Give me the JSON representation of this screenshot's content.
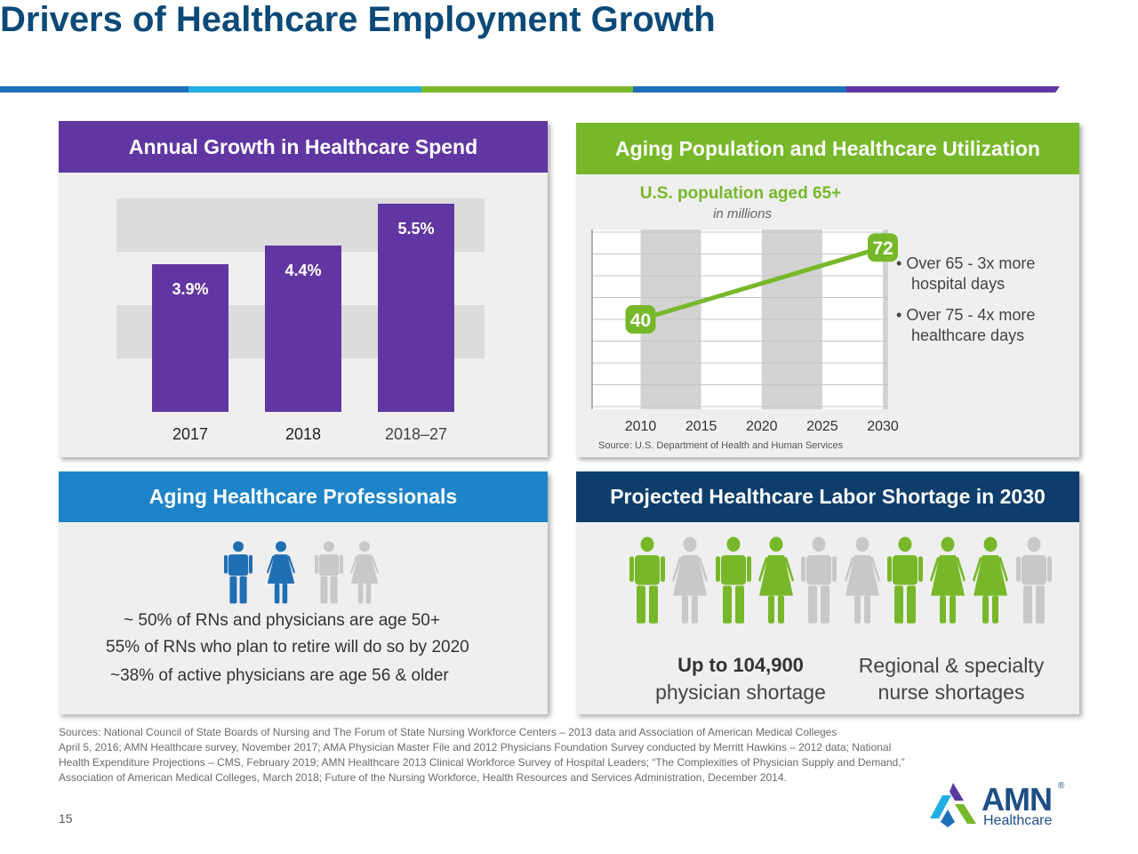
{
  "title": "Drivers of Healthcare Employment Growth",
  "colors": {
    "title": "#0b4a78",
    "purple": "#6236a2",
    "green": "#77b82a",
    "light_blue": "#1d84c9",
    "navy": "#0d3d6b",
    "gray_figure": "#c8c8c8",
    "icon_blue": "#1f6fb5"
  },
  "spend": {
    "header": "Annual Growth in Healthcare Spend"
  },
  "aging_pop": {
    "header": "Aging Population and Healthcare Utilization",
    "chart_title": "U.S. population aged 65+",
    "chart_subtitle": "in millions",
    "source": "Source: U.S. Department of Health and Human Services",
    "bullets": [
      {
        "line1": "Over 65 - 3x more",
        "line2": "hospital days"
      },
      {
        "line1": "Over 75 - 4x more",
        "line2": "healthcare days"
      }
    ]
  },
  "chart_data": [
    {
      "type": "bar",
      "title": "Annual Growth in Healthcare Spend",
      "categories": [
        "2017",
        "2018",
        "2018–27"
      ],
      "values": [
        3.9,
        4.4,
        5.5
      ],
      "value_labels": [
        "3.9%",
        "4.4%",
        "5.5%"
      ],
      "ylim": [
        0,
        6.5
      ],
      "ylabel": "",
      "xlabel": ""
    },
    {
      "type": "line",
      "title": "U.S. population aged 65+",
      "subtitle": "in millions",
      "x": [
        "2010",
        "2015",
        "2020",
        "2025",
        "2030"
      ],
      "xlim": [
        2006,
        2030
      ],
      "ylim": [
        0,
        80
      ],
      "series": [
        {
          "name": "U.S. population aged 65+",
          "x": [
            2010,
            2030
          ],
          "values": [
            40,
            72
          ],
          "value_labels": [
            "40",
            "72"
          ]
        }
      ]
    }
  ],
  "professionals": {
    "header": "Aging Healthcare Professionals",
    "stats": [
      "~ 50% of RNs and physicians are age 50+",
      "55% of RNs who plan to retire will do so by 2020",
      "~38% of active physicians are age 56 & older"
    ],
    "figures": [
      {
        "icon": "man-icon",
        "highlighted": true
      },
      {
        "icon": "woman-icon",
        "highlighted": true
      },
      {
        "icon": "man-icon",
        "highlighted": false
      },
      {
        "icon": "woman-icon",
        "highlighted": false
      }
    ]
  },
  "shortage": {
    "header": "Projected Healthcare Labor Shortage in 2030",
    "physician_line1": "Up to 104,900",
    "physician_line2": "physician shortage",
    "nurse_line1": "Regional & specialty",
    "nurse_line2": "nurse shortages",
    "figures": [
      {
        "icon": "man-icon",
        "highlighted": true
      },
      {
        "icon": "woman-icon",
        "highlighted": false
      },
      {
        "icon": "man-icon",
        "highlighted": true
      },
      {
        "icon": "woman-icon",
        "highlighted": true
      },
      {
        "icon": "man-icon",
        "highlighted": false
      },
      {
        "icon": "woman-icon",
        "highlighted": false
      },
      {
        "icon": "man-icon",
        "highlighted": true
      },
      {
        "icon": "woman-icon",
        "highlighted": true
      },
      {
        "icon": "woman-icon",
        "highlighted": true
      },
      {
        "icon": "man-icon",
        "highlighted": false
      }
    ]
  },
  "sources": {
    "lines": [
      "Sources: National Council of State Boards of Nursing and The Forum of State Nursing Workforce Centers – 2013 data and Association of American Medical Colleges",
      "April 5, 2016; AMN Healthcare survey, November 2017; AMA Physician Master File and 2012 Physicians Foundation Survey conducted by Merritt Hawkins – 2012 data; National",
      "Health Expenditure Projections – CMS, February 2019; AMN Healthcare 2013 Clinical Workforce Survey of Hospital Leaders; “The Complexities of Physician Supply and Demand,”",
      "Association of American Medical Colleges, March 2018; Future of the Nursing Workforce, Health Resources and Services Administration, December 2014."
    ]
  },
  "page_number": "15",
  "logo": {
    "name": "AMN",
    "registered": "®",
    "sub": "Healthcare"
  }
}
